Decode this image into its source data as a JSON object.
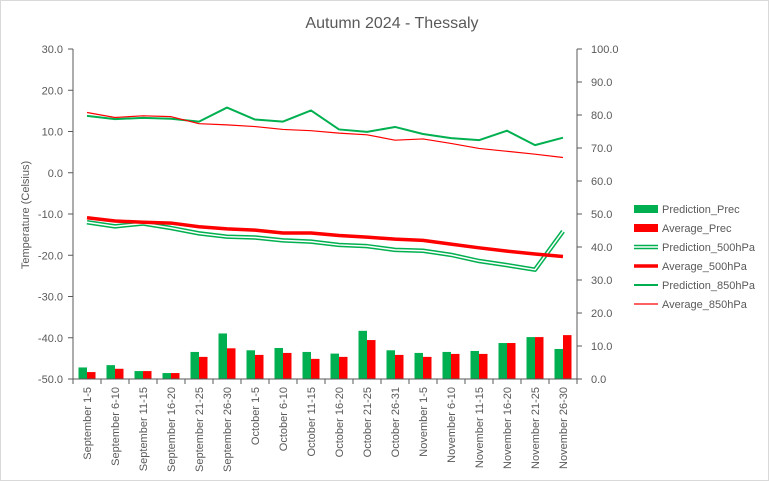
{
  "chart_data": {
    "type": "bar",
    "title": "Autumn 2024 - Thessaly",
    "ylabel": "Temperature (Celsius)",
    "ylim": [
      -50,
      30
    ],
    "y_ticks": [
      30,
      20,
      10,
      0,
      -10,
      -20,
      -30,
      -40,
      -50
    ],
    "y_tick_labels": [
      "30.0",
      "20.0",
      "10.0",
      "0.0",
      "-10.0",
      "-20.0",
      "-30.0",
      "-40.0",
      "-50.0"
    ],
    "y2lim": [
      0,
      100
    ],
    "y2_ticks": [
      100,
      90,
      80,
      70,
      60,
      50,
      40,
      30,
      20,
      10,
      0
    ],
    "y2_tick_labels": [
      "100.0",
      "90.0",
      "80.0",
      "70.0",
      "60.0",
      "50.0",
      "40.0",
      "30.0",
      "20.0",
      "10.0",
      "0.0"
    ],
    "grid": false,
    "legend_position": "right",
    "categories": [
      "September 1-5",
      "September 6-10",
      "September 11-15",
      "September 16-20",
      "September 21-25",
      "September 26-30",
      "October 1-5",
      "October 6-10",
      "October 11-15",
      "October 16-20",
      "October 21-25",
      "October 26-31",
      "November 1-5",
      "November 6-10",
      "November 11-15",
      "November 16-20",
      "November 21-25",
      "November 26-30"
    ],
    "series": [
      {
        "name": "Prediction_Prec",
        "type": "bar",
        "axis": "right",
        "color": "#00b050",
        "values": [
          3.5,
          4.2,
          2.4,
          1.8,
          8.2,
          13.8,
          8.7,
          9.4,
          8.2,
          7.7,
          14.6,
          8.7,
          7.9,
          8.2,
          8.5,
          10.9,
          12.7,
          9.1
        ]
      },
      {
        "name": "Average_Prec",
        "type": "bar",
        "axis": "right",
        "color": "#ff0000",
        "values": [
          2.1,
          3.1,
          2.4,
          1.8,
          6.7,
          9.3,
          7.3,
          7.9,
          6.1,
          6.7,
          11.8,
          7.3,
          6.7,
          7.6,
          7.6,
          10.9,
          12.7,
          13.3
        ]
      },
      {
        "name": "Prediction_500hPa",
        "type": "line",
        "style": "double",
        "axis": "left",
        "color": "#00b050",
        "values": [
          -12.0,
          -13.0,
          -12.3,
          -13.4,
          -14.7,
          -15.5,
          -15.7,
          -16.4,
          -16.7,
          -17.5,
          -17.8,
          -18.7,
          -18.9,
          -19.9,
          -21.4,
          -22.4,
          -23.5,
          -14.2
        ]
      },
      {
        "name": "Average_500hPa",
        "type": "line",
        "axis": "left",
        "color": "#ff0000",
        "values": [
          -10.9,
          -11.7,
          -12.0,
          -12.2,
          -13.1,
          -13.6,
          -13.9,
          -14.6,
          -14.6,
          -15.2,
          -15.6,
          -16.1,
          -16.4,
          -17.3,
          -18.2,
          -19.0,
          -19.7,
          -20.3
        ]
      },
      {
        "name": "Prediction_850hPa",
        "type": "line",
        "axis": "left",
        "color": "#00b050",
        "values": [
          13.8,
          13.0,
          13.3,
          13.1,
          12.4,
          15.8,
          12.9,
          12.4,
          15.1,
          10.5,
          9.9,
          11.1,
          9.4,
          8.4,
          7.9,
          10.2,
          6.7,
          8.5
        ]
      },
      {
        "name": "Average_850hPa",
        "type": "line",
        "axis": "left",
        "color": "#ff0000",
        "values": [
          14.6,
          13.4,
          13.8,
          13.6,
          11.9,
          11.6,
          11.2,
          10.5,
          10.2,
          9.6,
          9.2,
          7.9,
          8.2,
          7.1,
          5.9,
          5.2,
          4.5,
          3.7
        ]
      }
    ]
  }
}
